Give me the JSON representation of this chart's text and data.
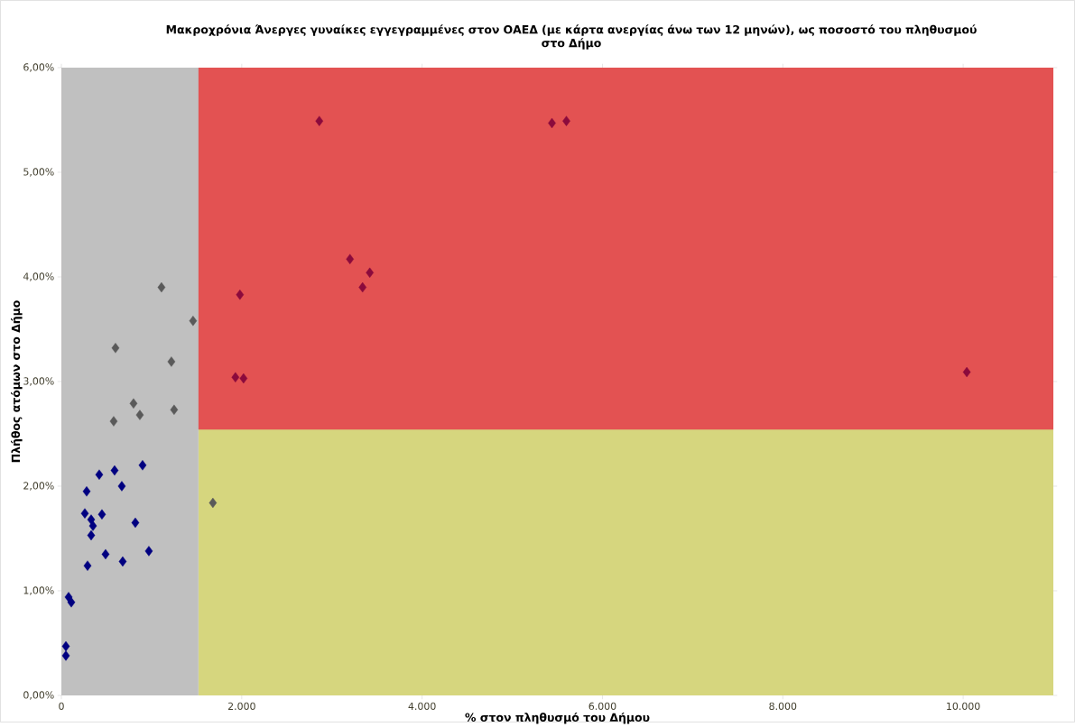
{
  "chart_data": {
    "type": "scatter",
    "title": "Μακροχρόνια Άνεργες γυναίκες εγγεγραμμένες στον ΟΑΕΔ (με κάρτα ανεργίας άνω των 12 μηνών), ως ποσοστό του πληθυσμού στο Δήμο",
    "xlabel": "% στον πληθυσμό του Δήμου",
    "ylabel": "Πλήθος ατόμων στο Δήμο",
    "xlim": [
      0,
      11000
    ],
    "ylim": [
      0,
      6
    ],
    "xticks": [
      {
        "value": 0,
        "label": "0"
      },
      {
        "value": 2000,
        "label": "2.000"
      },
      {
        "value": 4000,
        "label": "4.000"
      },
      {
        "value": 6000,
        "label": "6.000"
      },
      {
        "value": 8000,
        "label": "8.000"
      },
      {
        "value": 10000,
        "label": "10.000"
      }
    ],
    "yticks": [
      {
        "value": 0,
        "label": "0,00%"
      },
      {
        "value": 1,
        "label": "1,00%"
      },
      {
        "value": 2,
        "label": "2,00%"
      },
      {
        "value": 3,
        "label": "3,00%"
      },
      {
        "value": 4,
        "label": "4,00%"
      },
      {
        "value": 5,
        "label": "5,00%"
      },
      {
        "value": 6,
        "label": "6,00%"
      }
    ],
    "marker": "diamond",
    "bands": [
      {
        "axis": "x",
        "from": 1520,
        "to": 11000,
        "color": "#d6d67e"
      },
      {
        "axis": "y",
        "from": 2.54,
        "to": 6,
        "color": "#e35252"
      },
      {
        "axis": "x",
        "from": 0,
        "to": 1520,
        "color": "#c0c0c0"
      }
    ],
    "series": [
      {
        "color": "#000080",
        "x": [
          50,
          50,
          80,
          110,
          290,
          280,
          260,
          330,
          350,
          330,
          420,
          450,
          490,
          590,
          670,
          680,
          820,
          900,
          970
        ],
        "values": [
          0.47,
          0.38,
          0.94,
          0.89,
          1.24,
          1.95,
          1.74,
          1.68,
          1.62,
          1.53,
          2.11,
          1.73,
          1.35,
          2.15,
          2.0,
          1.28,
          1.65,
          2.2,
          1.38
        ]
      },
      {
        "color": "#5a5a5a",
        "x": [
          1110,
          1460,
          600,
          1220,
          800,
          870,
          580,
          1250,
          1680
        ],
        "values": [
          3.9,
          3.58,
          3.32,
          3.19,
          2.79,
          2.68,
          2.62,
          2.73,
          1.84
        ]
      },
      {
        "color": "#8b0a3c",
        "x": [
          2860,
          5440,
          5600,
          3200,
          3420,
          3340,
          1980,
          1930,
          2020,
          10040
        ],
        "values": [
          5.49,
          5.47,
          5.49,
          4.17,
          4.04,
          3.9,
          3.83,
          3.04,
          3.03,
          3.09
        ]
      }
    ]
  }
}
